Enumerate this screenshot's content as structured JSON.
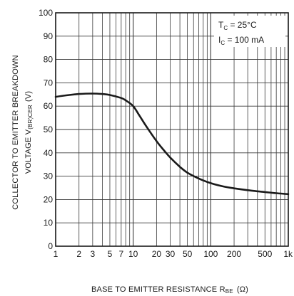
{
  "chart_data": {
    "type": "line",
    "title": "",
    "xlabel": "BASE TO EMITTER RESISTANCE R",
    "xlabel_sub": "BE",
    "xlabel_unit": "(Ω)",
    "ylabel_line1": "COLLECTOR TO EMITTER BREAKDOWN",
    "ylabel_line2_pre": "VOLTAGE   V",
    "ylabel_line2_sub": "(BR)CER",
    "ylabel_line2_unit": "(V)",
    "x_scale": "log",
    "xlim": [
      1,
      1000
    ],
    "ylim": [
      0,
      100
    ],
    "x_ticks": [
      {
        "value": 1,
        "label": "1"
      },
      {
        "value": 2,
        "label": "2"
      },
      {
        "value": 3,
        "label": "3"
      },
      {
        "value": 5,
        "label": "5"
      },
      {
        "value": 7,
        "label": "7"
      },
      {
        "value": 10,
        "label": "10"
      },
      {
        "value": 20,
        "label": "20"
      },
      {
        "value": 30,
        "label": "30"
      },
      {
        "value": 50,
        "label": "50"
      },
      {
        "value": 100,
        "label": "100"
      },
      {
        "value": 200,
        "label": "200"
      },
      {
        "value": 500,
        "label": "500"
      },
      {
        "value": 1000,
        "label": "1k"
      }
    ],
    "x_gridlines": [
      1,
      2,
      3,
      4,
      5,
      6,
      7,
      8,
      9,
      10,
      20,
      30,
      40,
      50,
      60,
      70,
      80,
      90,
      100,
      200,
      300,
      400,
      500,
      600,
      700,
      800,
      900,
      1000
    ],
    "y_ticks": [
      0,
      10,
      20,
      30,
      40,
      50,
      60,
      70,
      80,
      90,
      100
    ],
    "grid": true,
    "legend": "none",
    "annotations": [
      {
        "pre": "T",
        "sub": "C",
        "post": " = 25°C"
      },
      {
        "pre": "I",
        "sub": "C",
        "post": " = 100 mA"
      }
    ],
    "series": [
      {
        "x": [
          1,
          1.5,
          2,
          3,
          4,
          5,
          7,
          8,
          10,
          12,
          15,
          20,
          25,
          30,
          40,
          50,
          70,
          100,
          150,
          200,
          300,
          500,
          700,
          1000
        ],
        "y": [
          64,
          64.8,
          65.2,
          65.4,
          65.2,
          64.8,
          63.5,
          62.5,
          60,
          56,
          51,
          45,
          41,
          38,
          34,
          31.5,
          29,
          27,
          25.5,
          24.8,
          24,
          23.2,
          22.7,
          22.3
        ]
      }
    ],
    "colors": {
      "line": "#1a1a1a",
      "grid": "#3a3a3a",
      "background": "#ffffff"
    }
  }
}
